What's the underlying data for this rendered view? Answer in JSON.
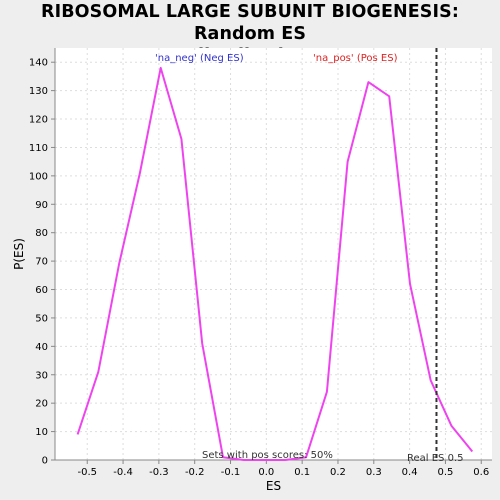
{
  "chart_data": {
    "type": "line",
    "title_line1": "RIBOSOMAL LARGE SUBUNIT BIOGENESIS: Random ES",
    "title_line2": "distribution",
    "xlabel": "ES",
    "ylabel": "P(ES)",
    "xlim": [
      -0.59,
      0.63
    ],
    "ylim": [
      0,
      145
    ],
    "x_ticks": [
      {
        "value": -0.5,
        "label": "-0.5"
      },
      {
        "value": -0.4,
        "label": "-0.4"
      },
      {
        "value": -0.3,
        "label": "-0.3"
      },
      {
        "value": -0.2,
        "label": "-0.2"
      },
      {
        "value": -0.1,
        "label": "-0.1"
      },
      {
        "value": 0.0,
        "label": "0.0"
      },
      {
        "value": 0.1,
        "label": "0.1"
      },
      {
        "value": 0.2,
        "label": "0.2"
      },
      {
        "value": 0.3,
        "label": "0.3"
      },
      {
        "value": 0.4,
        "label": "0.4"
      },
      {
        "value": 0.5,
        "label": "0.5"
      },
      {
        "value": 0.6,
        "label": "0.6"
      }
    ],
    "y_ticks": [
      {
        "value": 0,
        "label": "0"
      },
      {
        "value": 10,
        "label": "10"
      },
      {
        "value": 20,
        "label": "20"
      },
      {
        "value": 30,
        "label": "30"
      },
      {
        "value": 40,
        "label": "40"
      },
      {
        "value": 50,
        "label": "50"
      },
      {
        "value": 60,
        "label": "60"
      },
      {
        "value": 70,
        "label": "70"
      },
      {
        "value": 80,
        "label": "80"
      },
      {
        "value": 90,
        "label": "90"
      },
      {
        "value": 100,
        "label": "100"
      },
      {
        "value": 110,
        "label": "110"
      },
      {
        "value": 120,
        "label": "120"
      },
      {
        "value": 130,
        "label": "130"
      },
      {
        "value": 140,
        "label": "140"
      }
    ],
    "grid": true,
    "series": [
      {
        "color": "#ee44ee",
        "points": [
          [
            -0.527,
            9
          ],
          [
            -0.469,
            31
          ],
          [
            -0.411,
            69
          ],
          [
            -0.353,
            101
          ],
          [
            -0.295,
            138
          ],
          [
            -0.237,
            113
          ],
          [
            -0.179,
            41
          ],
          [
            -0.121,
            1
          ],
          [
            -0.063,
            0
          ],
          [
            -0.005,
            0
          ],
          [
            0.053,
            0
          ],
          [
            0.111,
            1
          ],
          [
            0.169,
            24
          ],
          [
            0.227,
            105
          ],
          [
            0.285,
            133
          ],
          [
            0.343,
            128
          ],
          [
            0.401,
            62
          ],
          [
            0.459,
            28
          ],
          [
            0.517,
            12
          ],
          [
            0.575,
            3
          ]
        ]
      }
    ],
    "real_es": 0.475,
    "annotations": {
      "neg_label": "'na_neg' (Neg ES)",
      "neg_color": "#3333cc",
      "pos_label": "'na_pos' (Pos ES)",
      "pos_color": "#dd2222",
      "pos_scores": "Sets with pos scores: 50%",
      "real_es_label": "Real ES 0.5"
    }
  }
}
